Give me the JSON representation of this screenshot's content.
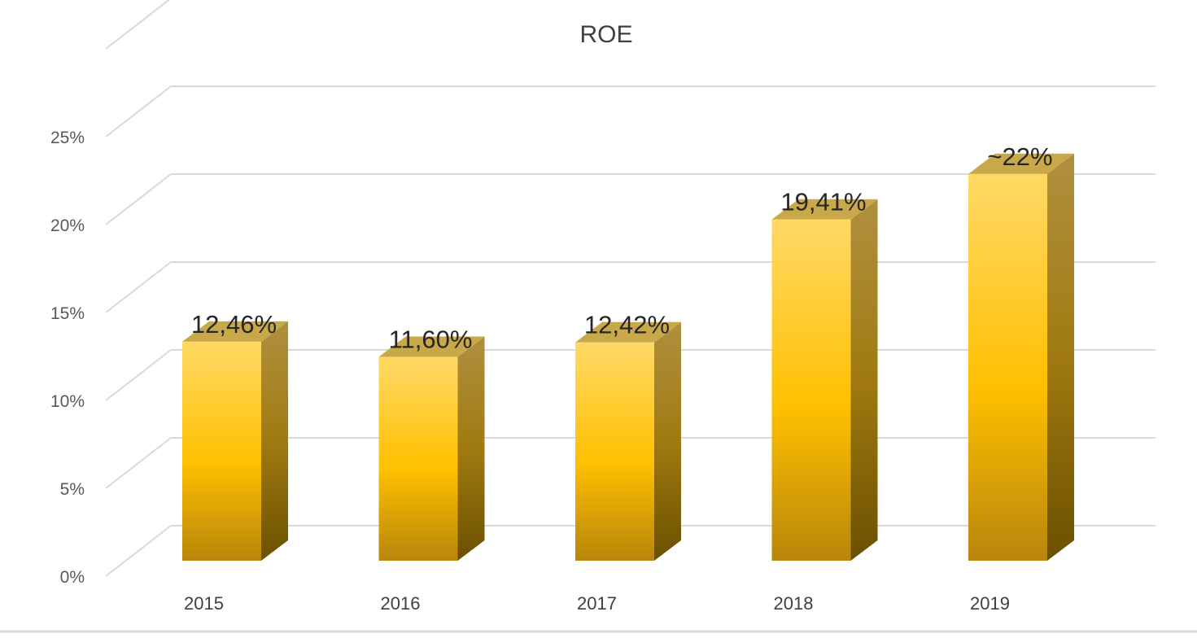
{
  "chart_data": {
    "type": "bar",
    "style": "3d-column",
    "title": "ROE",
    "xlabel": "",
    "ylabel": "",
    "categories": [
      "2015",
      "2016",
      "2017",
      "2018",
      "2019"
    ],
    "values": [
      12.46,
      11.6,
      12.42,
      19.41,
      22
    ],
    "data_labels": [
      "12,46%",
      "11,60%",
      "12,42%",
      "19,41%",
      "~22%"
    ],
    "ylim": [
      0,
      30
    ],
    "y_ticks": [
      0,
      5,
      10,
      15,
      20,
      25
    ],
    "y_tick_labels": [
      "0%",
      "5%",
      "10%",
      "15%",
      "20%",
      "25%"
    ],
    "grid": true,
    "legend": "none",
    "colors": {
      "bar_light": "#ffd966",
      "bar_mid": "#ffc000",
      "bar_dark": "#b8860b",
      "side": "#8a6a10",
      "top": "#c9a84a",
      "grid": "#d9d9d9"
    }
  }
}
